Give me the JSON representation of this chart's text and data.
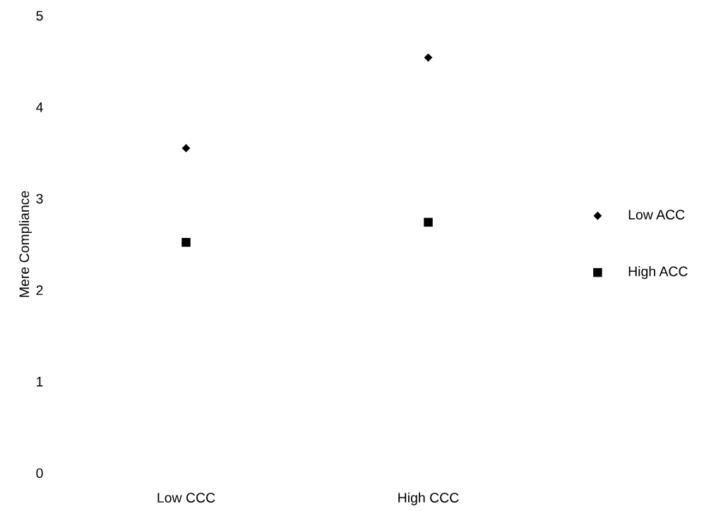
{
  "chart_data": {
    "type": "scatter",
    "ylabel": "Mere Compliance",
    "categories": [
      "Low CCC",
      "High CCC"
    ],
    "series": [
      {
        "name": "Low ACC",
        "color": "#000000",
        "marker": "diamond",
        "values": [
          3.55,
          4.54
        ]
      },
      {
        "name": "High ACC",
        "color": "#000000",
        "marker": "square",
        "values": [
          2.52,
          2.74
        ]
      }
    ],
    "ylim": [
      0,
      5
    ],
    "yticks": [
      0,
      1,
      2,
      3,
      4,
      5
    ],
    "grid": false,
    "legend": "right"
  }
}
